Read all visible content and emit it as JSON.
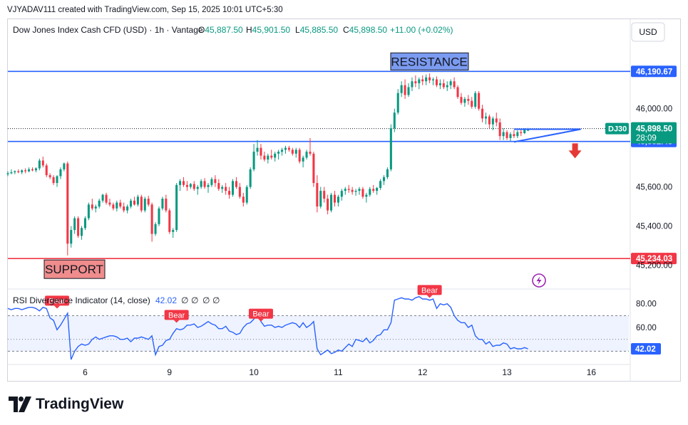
{
  "attribution": "VJYADAV111 created with TradingView.com, Sep 15, 2025 10:01 UTC+5:30",
  "brand": "TradingView",
  "currency_button": "USD",
  "chart_data": {
    "type": "candlestick",
    "title": "Dow Jones Index Cash CFD (USD) · 1h · Vantage",
    "ohlc_header": {
      "o_label": "O",
      "o": "45,887.50",
      "h_label": "H",
      "h": "45,901.50",
      "l_label": "L",
      "l": "45,885.50",
      "c_label": "C",
      "c": "45,898.50",
      "change": "+11.00 (+0.02%)"
    },
    "ylim": [
      45100,
      46330
    ],
    "y_ticks": [
      {
        "value": 46000,
        "label": "46,000.00"
      },
      {
        "value": 45600,
        "label": "45,600.00"
      },
      {
        "value": 45400,
        "label": "45,400.00"
      },
      {
        "value": 45200,
        "label": "45,200.00"
      }
    ],
    "x_ticks": [
      {
        "t": 22,
        "label": "6"
      },
      {
        "t": 46,
        "label": "9"
      },
      {
        "t": 70,
        "label": "10"
      },
      {
        "t": 94,
        "label": "11"
      },
      {
        "t": 118,
        "label": "12"
      },
      {
        "t": 142,
        "label": "13"
      },
      {
        "t": 166,
        "label": "16"
      }
    ],
    "candles": [
      [
        45665,
        45680,
        45655,
        45670
      ],
      [
        45670,
        45690,
        45665,
        45675
      ],
      [
        45675,
        45685,
        45665,
        45680
      ],
      [
        45680,
        45690,
        45670,
        45675
      ],
      [
        45675,
        45690,
        45665,
        45685
      ],
      [
        45685,
        45695,
        45670,
        45680
      ],
      [
        45680,
        45700,
        45675,
        45690
      ],
      [
        45690,
        45700,
        45680,
        45685
      ],
      [
        45685,
        45700,
        45675,
        45695
      ],
      [
        45695,
        45745,
        45685,
        45735
      ],
      [
        45735,
        45755,
        45700,
        45710
      ],
      [
        45710,
        45720,
        45650,
        45660
      ],
      [
        45660,
        45670,
        45640,
        45650
      ],
      [
        45650,
        45660,
        45610,
        45620
      ],
      [
        45620,
        45660,
        45600,
        45655
      ],
      [
        45655,
        45700,
        45640,
        45690
      ],
      [
        45690,
        45725,
        45680,
        45720
      ],
      [
        45720,
        45730,
        45250,
        45310
      ],
      [
        45310,
        45400,
        45290,
        45380
      ],
      [
        45380,
        45450,
        45360,
        45440
      ],
      [
        45440,
        45450,
        45340,
        45350
      ],
      [
        45350,
        45400,
        45330,
        45390
      ],
      [
        45390,
        45450,
        45380,
        45440
      ],
      [
        45440,
        45520,
        45430,
        45510
      ],
      [
        45510,
        45540,
        45480,
        45490
      ],
      [
        45490,
        45510,
        45470,
        45500
      ],
      [
        45500,
        45540,
        45490,
        45530
      ],
      [
        45530,
        45565,
        45520,
        45560
      ],
      [
        45560,
        45570,
        45510,
        45520
      ],
      [
        45520,
        45540,
        45500,
        45510
      ],
      [
        45510,
        45520,
        45480,
        45490
      ],
      [
        45490,
        45530,
        45475,
        45520
      ],
      [
        45520,
        45535,
        45490,
        45500
      ],
      [
        45500,
        45520,
        45470,
        45480
      ],
      [
        45480,
        45510,
        45465,
        45500
      ],
      [
        45500,
        45540,
        45490,
        45530
      ],
      [
        45530,
        45550,
        45505,
        45510
      ],
      [
        45510,
        45560,
        45500,
        45550
      ],
      [
        45550,
        45560,
        45470,
        45480
      ],
      [
        45480,
        45550,
        45470,
        45540
      ],
      [
        45540,
        45555,
        45500,
        45510
      ],
      [
        45510,
        45520,
        45320,
        45360
      ],
      [
        45360,
        45420,
        45350,
        45410
      ],
      [
        45410,
        45500,
        45400,
        45490
      ],
      [
        45490,
        45550,
        45480,
        45540
      ],
      [
        45540,
        45560,
        45470,
        45480
      ],
      [
        45480,
        45490,
        45360,
        45370
      ],
      [
        45370,
        45390,
        45340,
        45380
      ],
      [
        45380,
        45620,
        45370,
        45610
      ],
      [
        45610,
        45640,
        45580,
        45630
      ],
      [
        45630,
        45650,
        45600,
        45610
      ],
      [
        45610,
        45630,
        45580,
        45600
      ],
      [
        45600,
        45620,
        45590,
        45615
      ],
      [
        45615,
        45630,
        45580,
        45590
      ],
      [
        45590,
        45610,
        45560,
        45600
      ],
      [
        45600,
        45640,
        45590,
        45630
      ],
      [
        45630,
        45645,
        45590,
        45600
      ],
      [
        45600,
        45620,
        45570,
        45610
      ],
      [
        45610,
        45650,
        45600,
        45640
      ],
      [
        45640,
        45660,
        45600,
        45620
      ],
      [
        45620,
        45640,
        45580,
        45590
      ],
      [
        45590,
        45610,
        45570,
        45600
      ],
      [
        45600,
        45620,
        45560,
        45580
      ],
      [
        45580,
        45600,
        45540,
        45560
      ],
      [
        45560,
        45640,
        45550,
        45630
      ],
      [
        45630,
        45650,
        45590,
        45600
      ],
      [
        45600,
        45620,
        45540,
        45550
      ],
      [
        45550,
        45570,
        45500,
        45520
      ],
      [
        45520,
        45610,
        45510,
        45600
      ],
      [
        45600,
        45700,
        45590,
        45690
      ],
      [
        45690,
        45820,
        45680,
        45780
      ],
      [
        45780,
        45840,
        45760,
        45800
      ],
      [
        45800,
        45820,
        45740,
        45760
      ],
      [
        45760,
        45780,
        45730,
        45740
      ],
      [
        45740,
        45770,
        45720,
        45760
      ],
      [
        45760,
        45790,
        45740,
        45750
      ],
      [
        45750,
        45780,
        45730,
        45770
      ],
      [
        45770,
        45790,
        45740,
        45780
      ],
      [
        45780,
        45800,
        45760,
        45790
      ],
      [
        45790,
        45810,
        45770,
        45800
      ],
      [
        45800,
        45810,
        45780,
        45790
      ],
      [
        45790,
        45800,
        45760,
        45770
      ],
      [
        45770,
        45800,
        45750,
        45790
      ],
      [
        45790,
        45800,
        45720,
        45730
      ],
      [
        45730,
        45760,
        45700,
        45750
      ],
      [
        45750,
        45790,
        45740,
        45780
      ],
      [
        45780,
        45850,
        45760,
        45770
      ],
      [
        45770,
        45780,
        45600,
        45620
      ],
      [
        45620,
        45660,
        45470,
        45500
      ],
      [
        45500,
        45600,
        45490,
        45580
      ],
      [
        45580,
        45600,
        45520,
        45540
      ],
      [
        45540,
        45560,
        45460,
        45480
      ],
      [
        45480,
        45570,
        45470,
        45560
      ],
      [
        45560,
        45580,
        45500,
        45520
      ],
      [
        45520,
        45560,
        45500,
        45550
      ],
      [
        45550,
        45590,
        45530,
        45580
      ],
      [
        45580,
        45600,
        45560,
        45590
      ],
      [
        45590,
        45610,
        45570,
        45585
      ],
      [
        45585,
        45600,
        45560,
        45575
      ],
      [
        45575,
        45590,
        45555,
        45580
      ],
      [
        45580,
        45600,
        45560,
        45590
      ],
      [
        45590,
        45600,
        45540,
        45550
      ],
      [
        45550,
        45570,
        45520,
        45560
      ],
      [
        45560,
        45600,
        45550,
        45590
      ],
      [
        45590,
        45610,
        45570,
        45580
      ],
      [
        45580,
        45600,
        45560,
        45595
      ],
      [
        45595,
        45640,
        45585,
        45630
      ],
      [
        45630,
        45660,
        45610,
        45650
      ],
      [
        45650,
        45700,
        45640,
        45690
      ],
      [
        45690,
        45920,
        45680,
        45900
      ],
      [
        45900,
        46000,
        45880,
        45980
      ],
      [
        45980,
        46100,
        45970,
        46080
      ],
      [
        46080,
        46140,
        46060,
        46120
      ],
      [
        46120,
        46150,
        46050,
        46070
      ],
      [
        46070,
        46130,
        46060,
        46110
      ],
      [
        46110,
        46160,
        46090,
        46140
      ],
      [
        46140,
        46170,
        46110,
        46130
      ],
      [
        46130,
        46160,
        46100,
        46150
      ],
      [
        46150,
        46170,
        46120,
        46140
      ],
      [
        46140,
        46175,
        46120,
        46160
      ],
      [
        46160,
        46180,
        46130,
        46145
      ],
      [
        46145,
        46160,
        46120,
        46150
      ],
      [
        46150,
        46165,
        46110,
        46120
      ],
      [
        46120,
        46150,
        46100,
        46130
      ],
      [
        46130,
        46150,
        46100,
        46110
      ],
      [
        46110,
        46140,
        46090,
        46120
      ],
      [
        46120,
        46150,
        46100,
        46140
      ],
      [
        46140,
        46160,
        46100,
        46110
      ],
      [
        46110,
        46120,
        46050,
        46060
      ],
      [
        46060,
        46080,
        46020,
        46030
      ],
      [
        46030,
        46060,
        46010,
        46050
      ],
      [
        46050,
        46070,
        46020,
        46040
      ],
      [
        46040,
        46060,
        46000,
        46010
      ],
      [
        46010,
        46090,
        46000,
        46080
      ],
      [
        46080,
        46090,
        45990,
        46000
      ],
      [
        46000,
        46020,
        45930,
        45950
      ],
      [
        45950,
        45980,
        45920,
        45960
      ],
      [
        45960,
        45970,
        45900,
        45920
      ],
      [
        45920,
        45960,
        45890,
        45950
      ],
      [
        45950,
        45980,
        45910,
        45930
      ],
      [
        45930,
        45950,
        45840,
        45860
      ],
      [
        45860,
        45900,
        45840,
        45880
      ],
      [
        45880,
        45890,
        45840,
        45850
      ],
      [
        45850,
        45880,
        45835,
        45870
      ],
      [
        45870,
        45890,
        45850,
        45860
      ],
      [
        45860,
        45890,
        45850,
        45880
      ],
      [
        45880,
        45895,
        45860,
        45875
      ],
      [
        45875,
        45900,
        45870,
        45895
      ],
      [
        45888,
        45902,
        45885,
        45898
      ]
    ],
    "levels": [
      {
        "name": "RESISTANCE",
        "value": 46190.67,
        "label": "46,190.67",
        "color": "#2962ff"
      },
      {
        "value": 45832.43,
        "label": "45,832.43",
        "color": "#2962ff"
      },
      {
        "name": "SUPPORT",
        "value": 45234.03,
        "label": "45,234.03",
        "color": "#f23645"
      }
    ],
    "current_price": {
      "symbol": "DJ30",
      "label": "45,898.50",
      "countdown": "28:09",
      "value": 45898.5
    },
    "triangle": {
      "t0": 144,
      "t1": 163,
      "apex": 45895,
      "top": 45895,
      "bottom": 45830
    },
    "rsi": {
      "title": "RSI Divergence Indicator (14, close)",
      "value_label": "42.02",
      "extras": [
        "∅",
        "∅",
        "∅",
        "∅"
      ],
      "ylim": [
        30,
        90
      ],
      "ticks": [
        {
          "value": 80,
          "label": "80.00"
        },
        {
          "value": 60,
          "label": "60.00"
        }
      ],
      "band": [
        70,
        40
      ],
      "mid": 50,
      "current": {
        "value": 42.02,
        "label": "42.02"
      },
      "values": [
        76,
        75,
        76,
        76,
        75,
        76,
        77,
        77,
        76,
        74,
        77,
        76,
        68,
        66,
        58,
        62,
        67,
        72,
        33,
        40,
        44,
        46,
        45,
        46,
        50,
        52,
        50,
        51,
        52,
        53,
        53,
        52,
        50,
        50,
        51,
        48,
        51,
        51,
        52,
        51,
        50,
        53,
        37,
        44,
        45,
        49,
        50,
        55,
        59,
        58,
        59,
        62,
        62,
        63,
        60,
        61,
        63,
        65,
        63,
        62,
        59,
        59,
        61,
        57,
        56,
        54,
        55,
        60,
        63,
        64,
        67,
        73,
        65,
        61,
        62,
        62,
        60,
        61,
        60,
        62,
        63,
        64,
        63,
        60,
        64,
        60,
        62,
        65,
        42,
        37,
        39,
        41,
        38,
        39,
        41,
        40,
        43,
        46,
        44,
        50,
        49,
        48,
        51,
        47,
        49,
        53,
        54,
        58,
        58,
        64,
        83,
        84,
        85,
        84,
        84,
        83,
        85,
        86,
        84,
        84,
        83,
        84,
        76,
        80,
        79,
        80,
        77,
        70,
        66,
        64,
        64,
        60,
        62,
        53,
        50,
        50,
        46,
        48,
        44,
        45,
        45,
        47,
        46,
        42.02,
        43,
        42,
        42,
        43,
        42.02
      ],
      "labels": [
        {
          "t": 14,
          "value": 76,
          "text": "Bear"
        },
        {
          "t": 48,
          "value": 64,
          "text": "Bear"
        },
        {
          "t": 72,
          "value": 65,
          "text": "Bear"
        },
        {
          "t": 120,
          "value": 85,
          "text": "Bear"
        }
      ]
    }
  }
}
